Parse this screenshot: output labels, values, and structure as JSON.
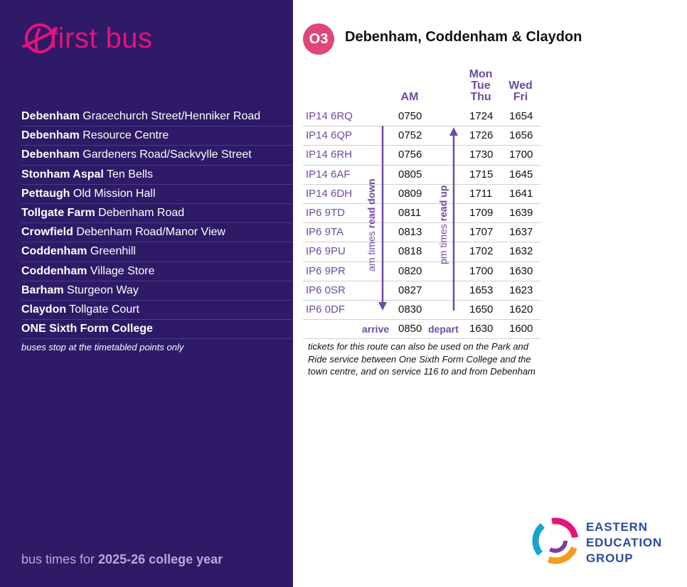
{
  "brand": {
    "name": "first bus",
    "color": "#e6127c"
  },
  "route": {
    "number": "O3",
    "title": "Debenham, Coddenham & Claydon",
    "badge_color": "#e0457b"
  },
  "headers": {
    "am": "AM",
    "mon_thu": [
      "Mon",
      "Tue",
      "Thu"
    ],
    "wed_fri": [
      "Wed",
      "Fri"
    ]
  },
  "stops": [
    {
      "town": "Debenham",
      "place": "Gracechurch Street/Henniker Road",
      "postcode": "IP14 6RQ",
      "am": "0750",
      "pm1": "1724",
      "pm2": "1654"
    },
    {
      "town": "Debenham",
      "place": "Resource Centre",
      "postcode": "IP14 6QP",
      "am": "0752",
      "pm1": "1726",
      "pm2": "1656"
    },
    {
      "town": "Debenham",
      "place": "Gardeners Road/Sackvylle Street",
      "postcode": "IP14 6RH",
      "am": "0756",
      "pm1": "1730",
      "pm2": "1700"
    },
    {
      "town": "Stonham Aspal",
      "place": "Ten Bells",
      "postcode": "IP14 6AF",
      "am": "0805",
      "pm1": "1715",
      "pm2": "1645"
    },
    {
      "town": "Pettaugh",
      "place": "Old Mission Hall",
      "postcode": "IP14 6DH",
      "am": "0809",
      "pm1": "1711",
      "pm2": "1641"
    },
    {
      "town": "Tollgate Farm",
      "place": "Debenham Road",
      "postcode": "IP6 9TD",
      "am": "0811",
      "pm1": "1709",
      "pm2": "1639"
    },
    {
      "town": "Crowfield",
      "place": "Debenham Road/Manor View",
      "postcode": "IP6 9TA",
      "am": "0813",
      "pm1": "1707",
      "pm2": "1637"
    },
    {
      "town": "Coddenham",
      "place": "Greenhill",
      "postcode": "IP6 9PU",
      "am": "0818",
      "pm1": "1702",
      "pm2": "1632"
    },
    {
      "town": "Coddenham",
      "place": "Village Store",
      "postcode": "IP6 9PR",
      "am": "0820",
      "pm1": "1700",
      "pm2": "1630"
    },
    {
      "town": "Barham",
      "place": "Sturgeon Way",
      "postcode": "IP6 0SR",
      "am": "0827",
      "pm1": "1653",
      "pm2": "1623"
    },
    {
      "town": "Claydon",
      "place": "Tollgate Court",
      "postcode": "IP6 0DF",
      "am": "0830",
      "pm1": "1650",
      "pm2": "1620"
    },
    {
      "town": "ONE Sixth Form College",
      "place": "",
      "postcode": "",
      "am": "0850",
      "pm1": "1630",
      "pm2": "1600"
    }
  ],
  "labels": {
    "arrive": "arrive",
    "depart": "depart",
    "am_read_prefix": "am times ",
    "am_read_bold": "read down",
    "pm_read_prefix": "pm times ",
    "pm_read_bold": "read up"
  },
  "note_left": "buses stop at the timetabled points only",
  "note_right": "tickets for this route can also be used on the Park and Ride service between One Sixth Form College and the town centre, and on service 116 to and from Debenham",
  "footer": {
    "prefix": "bus times for ",
    "bold": "2025-26 college year"
  },
  "partner": {
    "lines": [
      "EASTERN",
      "EDUCATION",
      "GROUP"
    ]
  }
}
